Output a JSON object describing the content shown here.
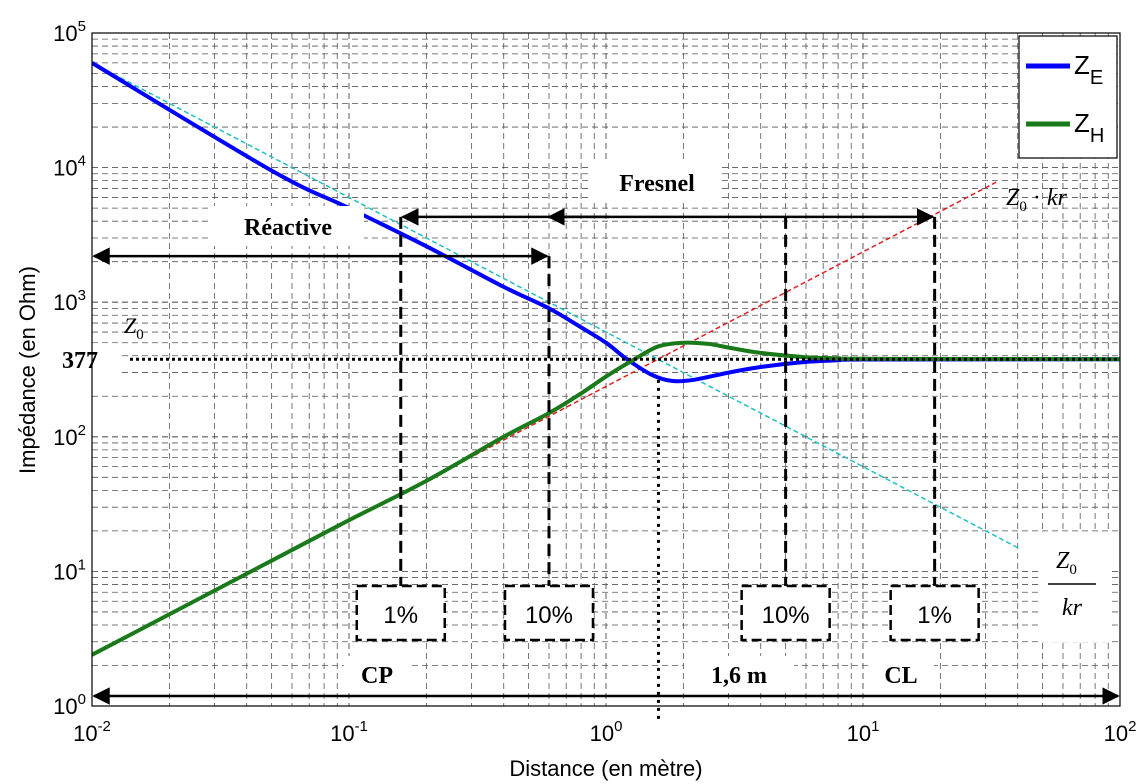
{
  "chart_data": {
    "type": "line",
    "xlabel": "Distance (en mètre)",
    "ylabel": "Impédance (en Ohm)",
    "x_scale": "log",
    "y_scale": "log",
    "xlim": [
      0.01,
      100
    ],
    "ylim": [
      1,
      100000
    ],
    "grid": true,
    "legend_position": "top-right",
    "x_ticks": [
      {
        "base": "10",
        "exp": "-2",
        "value": 0.01
      },
      {
        "base": "10",
        "exp": "-1",
        "value": 0.1
      },
      {
        "base": "10",
        "exp": "0",
        "value": 1
      },
      {
        "base": "10",
        "exp": "1",
        "value": 10
      },
      {
        "base": "10",
        "exp": "2",
        "value": 100
      }
    ],
    "y_ticks": [
      {
        "base": "10",
        "exp": "0",
        "value": 1
      },
      {
        "base": "10",
        "exp": "1",
        "value": 10
      },
      {
        "base": "10",
        "exp": "2",
        "value": 100
      },
      {
        "base": "10",
        "exp": "3",
        "value": 1000
      },
      {
        "base": "10",
        "exp": "4",
        "value": 10000
      },
      {
        "base": "10",
        "exp": "5",
        "value": 100000
      }
    ],
    "series": [
      {
        "name": "Z_E",
        "label_main": "Z",
        "label_sub": "E",
        "color": "#0000ff",
        "shape": "ze",
        "x": [
          0.01,
          0.05,
          0.1,
          0.2,
          0.4,
          0.6,
          0.8,
          1.0,
          1.2,
          1.5,
          1.8,
          2.2,
          3,
          4,
          6,
          8,
          10,
          100
        ],
        "y": [
          60000,
          9500,
          5000,
          2600,
          1300,
          900,
          650,
          500,
          380,
          290,
          260,
          265,
          300,
          330,
          360,
          370,
          375,
          377
        ]
      },
      {
        "name": "Z_H",
        "label_main": "Z",
        "label_sub": "H",
        "color": "#1a7a1a",
        "shape": "zh",
        "x": [
          0.01,
          0.05,
          0.1,
          0.2,
          0.4,
          0.6,
          0.8,
          1.0,
          1.3,
          1.6,
          2.0,
          2.5,
          3,
          4,
          6,
          8,
          10,
          100
        ],
        "y": [
          2.4,
          12,
          24,
          47,
          100,
          150,
          210,
          280,
          380,
          470,
          500,
          490,
          460,
          420,
          390,
          383,
          380,
          377
        ]
      }
    ],
    "reference_lines": [
      {
        "label": "Z0·kr",
        "color": "#e02020",
        "x": [
          0.01,
          33
        ],
        "y": [
          2.37,
          7800
        ]
      },
      {
        "label": "Z0/kr",
        "color": "#20c0c0",
        "x": [
          0.01,
          40
        ],
        "y": [
          60000,
          15
        ]
      },
      {
        "label": "377",
        "color": "#000000",
        "y": 377
      }
    ],
    "labels": {
      "z0_ref": "Z0",
      "z0_kr": "Z0 · kr",
      "z0_over_kr_num": "Z0",
      "z0_over_kr_den": "kr",
      "level_377": "377",
      "fresnel": "Fresnel",
      "reactive": "Réactive",
      "cp": "CP",
      "cl": "CL",
      "transition": "1,6 m"
    },
    "markers": {
      "cp_1": {
        "x": 0.159,
        "label": "1%"
      },
      "react_10": {
        "x": 0.6,
        "label": "10%"
      },
      "fres_10": {
        "x": 5.0,
        "label": "10%"
      },
      "cl_1": {
        "x": 19,
        "label": "1%"
      },
      "transition_x": 1.6,
      "reactive_arrow": {
        "x1": 0.01,
        "x2": 0.6,
        "y": 2200
      },
      "fresnel_arrow": {
        "x1": 0.159,
        "x2": 19,
        "y": 4300
      },
      "bottom_arrow": {
        "x1": 0.01,
        "x2": 100,
        "y": 1
      }
    }
  }
}
